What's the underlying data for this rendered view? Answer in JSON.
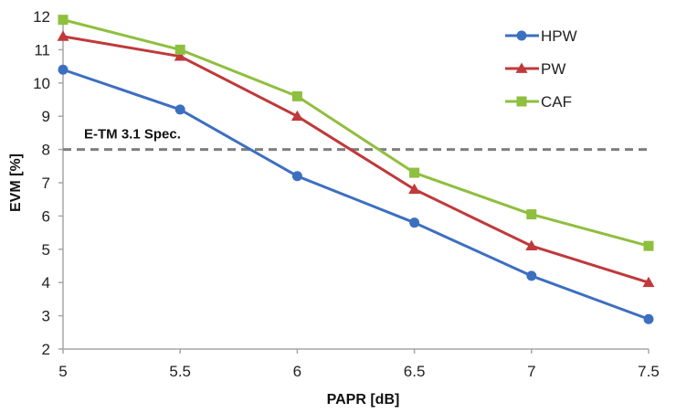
{
  "chart_data": {
    "type": "line",
    "title": "",
    "xlabel": "PAPR [dB]",
    "ylabel": "EVM [%]",
    "x": [
      5,
      5.5,
      6,
      6.5,
      7,
      7.5
    ],
    "x_tick_labels": [
      "5",
      "5.5",
      "6",
      "6.5",
      "7",
      "7.5"
    ],
    "y_tick_labels": [
      "2",
      "3",
      "4",
      "5",
      "6",
      "7",
      "8",
      "9",
      "10",
      "11",
      "12"
    ],
    "xlim": [
      5,
      7.5
    ],
    "ylim": [
      2,
      12
    ],
    "grid": false,
    "legend_position": "top-right",
    "series": [
      {
        "name": "HPW",
        "color": "#3d6fc0",
        "marker": "circle",
        "values": [
          10.4,
          9.2,
          7.2,
          5.8,
          4.2,
          2.9
        ]
      },
      {
        "name": "PW",
        "color": "#c0393b",
        "marker": "triangle",
        "values": [
          11.4,
          10.8,
          9.0,
          6.8,
          5.1,
          4.0
        ]
      },
      {
        "name": "CAF",
        "color": "#8fbf3f",
        "marker": "square",
        "values": [
          11.9,
          11.0,
          9.6,
          7.3,
          6.05,
          5.1
        ]
      }
    ],
    "reference_line": {
      "label": "E-TM 3.1 Spec.",
      "y": 8,
      "color": "#7f7f7f",
      "style": "dashed"
    }
  }
}
